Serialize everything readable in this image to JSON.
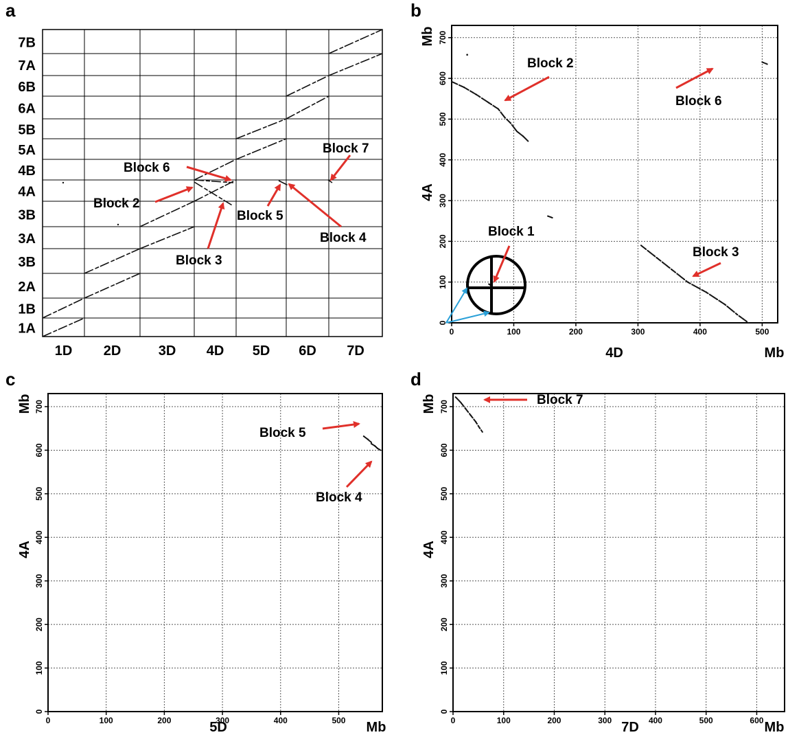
{
  "colors": {
    "arrow": "#e0302a",
    "blue_arrow": "#2aa0d8",
    "dots": "#111111"
  },
  "chart_data": [
    {
      "panel": "a",
      "type": "scatter",
      "x_chromosomes": [
        "1D",
        "2D",
        "3D",
        "4D",
        "5D",
        "6D",
        "7D"
      ],
      "y_chromosomes": [
        "1A",
        "1B",
        "2A",
        "3B",
        "3A",
        "3B",
        "4A",
        "4B",
        "5A",
        "5B",
        "6A",
        "6B",
        "7A",
        "7B"
      ],
      "annotations": [
        "Block 2",
        "Block 3",
        "Block 4",
        "Block 5",
        "Block 6",
        "Block 7"
      ]
    },
    {
      "panel": "b",
      "type": "scatter",
      "xlabel": "4D",
      "ylabel": "4A",
      "unit_x": "Mb",
      "unit_y": "Mb",
      "xlim": [
        0,
        525
      ],
      "ylim": [
        0,
        730
      ],
      "xticks": [
        0,
        100,
        200,
        300,
        400,
        500
      ],
      "yticks": [
        0,
        100,
        200,
        300,
        400,
        500,
        600,
        700
      ],
      "grid": true,
      "annotations": [
        "Block 1",
        "Block 2",
        "Block 3",
        "Block 6"
      ],
      "series": [
        {
          "segments": [
            {
              "label": "Block 2",
              "points": [
                [
                  0,
                  592
                ],
                [
                  20,
                  578
                ],
                [
                  40,
                  560
                ],
                [
                  60,
                  540
                ],
                [
                  75,
                  525
                ],
                [
                  85,
                  505
                ],
                [
                  95,
                  490
                ],
                [
                  105,
                  470
                ],
                [
                  115,
                  458
                ],
                [
                  123,
                  446
                ]
              ]
            },
            {
              "label": "Block 3",
              "points": [
                [
                  305,
                  190
                ],
                [
                  330,
                  160
                ],
                [
                  355,
                  130
                ],
                [
                  380,
                  100
                ],
                [
                  410,
                  75
                ],
                [
                  440,
                  45
                ],
                [
                  460,
                  20
                ],
                [
                  478,
                  0
                ]
              ]
            },
            {
              "label": "Block 6",
              "points": [
                [
                  500,
                  640
                ],
                [
                  508,
                  635
                ]
              ]
            },
            {
              "label": "Block 1",
              "points": [
                [
                  60,
                  95
                ],
                [
                  62,
                  93
                ]
              ]
            },
            {
              "points": [
                [
                  25,
                  658
                ]
              ]
            },
            {
              "points": [
                [
                  155,
                  262
                ],
                [
                  162,
                  258
                ]
              ]
            }
          ]
        }
      ]
    },
    {
      "panel": "c",
      "type": "scatter",
      "xlabel": "5D",
      "ylabel": "4A",
      "unit_x": "Mb",
      "unit_y": "Mb",
      "xlim": [
        0,
        575
      ],
      "ylim": [
        0,
        730
      ],
      "xticks": [
        0,
        100,
        200,
        300,
        400,
        500
      ],
      "yticks": [
        0,
        100,
        200,
        300,
        400,
        500,
        600,
        700
      ],
      "grid": true,
      "annotations": [
        "Block 4",
        "Block 5"
      ],
      "series": [
        {
          "segments": [
            {
              "label": "Block 5",
              "points": [
                [
                  543,
                  632
                ],
                [
                  550,
                  625
                ],
                [
                  556,
                  618
                ]
              ]
            },
            {
              "label": "Block 4",
              "points": [
                [
                  556,
                  615
                ],
                [
                  562,
                  610
                ],
                [
                  567,
                  604
                ],
                [
                  572,
                  600
                ]
              ]
            }
          ]
        }
      ]
    },
    {
      "panel": "d",
      "type": "scatter",
      "xlabel": "7D",
      "ylabel": "4A",
      "unit_x": "Mb",
      "unit_y": "Mb",
      "xlim": [
        0,
        655
      ],
      "ylim": [
        0,
        730
      ],
      "xticks": [
        0,
        100,
        200,
        300,
        400,
        500,
        600
      ],
      "yticks": [
        0,
        100,
        200,
        300,
        400,
        500,
        600,
        700
      ],
      "grid": true,
      "annotations": [
        "Block 7"
      ],
      "series": [
        {
          "segments": [
            {
              "label": "Block 7",
              "points": [
                [
                  5,
                  722
                ],
                [
                  15,
                  710
                ],
                [
                  25,
                  695
                ],
                [
                  35,
                  680
                ],
                [
                  45,
                  665
                ],
                [
                  52,
                  652
                ],
                [
                  58,
                  642
                ]
              ]
            }
          ]
        }
      ]
    }
  ]
}
